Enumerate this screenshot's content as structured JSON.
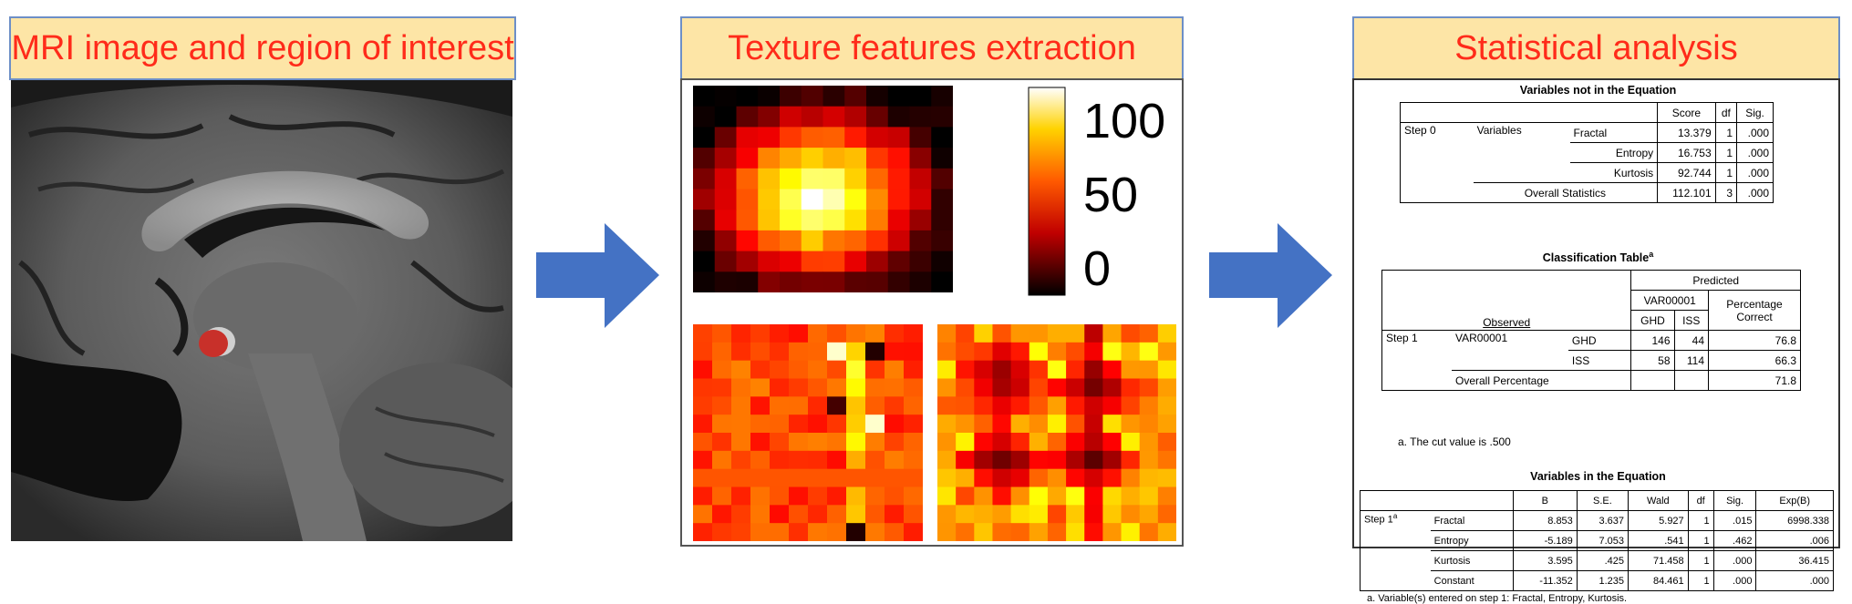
{
  "panels": {
    "mri_title": "MRI image and region of interest",
    "texture_title": "Texture features extraction",
    "stats_title": "Statistical analysis"
  },
  "colorbar": {
    "ticks": [
      "100",
      "50",
      "0"
    ],
    "range": [
      0,
      100
    ]
  },
  "table1": {
    "title": "Variables not in the Equation",
    "headers": [
      "Score",
      "df",
      "Sig."
    ],
    "step": "Step 0",
    "group": "Variables",
    "rows": [
      {
        "name": "Fractal",
        "score": "13.379",
        "df": "1",
        "sig": ".000"
      },
      {
        "name": "Entropy",
        "score": "16.753",
        "df": "1",
        "sig": ".000"
      },
      {
        "name": "Kurtosis",
        "score": "92.744",
        "df": "1",
        "sig": ".000"
      }
    ],
    "overall": {
      "name": "Overall Statistics",
      "score": "112.101",
      "df": "3",
      "sig": ".000"
    }
  },
  "table2": {
    "title": "Classification Table",
    "title_sup": "a",
    "predicted": "Predicted",
    "var": "VAR00001",
    "observed": "Observed",
    "pct_header": "Percentage Correct",
    "col_ghd": "GHD",
    "col_iss": "ISS",
    "step": "Step 1",
    "row_var": "VAR00001",
    "rows": [
      {
        "label": "GHD",
        "ghd": "146",
        "iss": "44",
        "pct": "76.8"
      },
      {
        "label": "ISS",
        "ghd": "58",
        "iss": "114",
        "pct": "66.3"
      }
    ],
    "overall_label": "Overall Percentage",
    "overall_pct": "71.8",
    "note": "a. The cut value is .500"
  },
  "table3": {
    "title": "Variables in the Equation",
    "headers": [
      "B",
      "S.E.",
      "Wald",
      "df",
      "Sig.",
      "Exp(B)"
    ],
    "step": "Step 1",
    "step_sup": "a",
    "rows": [
      {
        "name": "Fractal",
        "b": "8.853",
        "se": "3.637",
        "wald": "5.927",
        "df": "1",
        "sig": ".015",
        "exp": "6998.338"
      },
      {
        "name": "Entropy",
        "b": "-5.189",
        "se": "7.053",
        "wald": ".541",
        "df": "1",
        "sig": ".462",
        "exp": ".006"
      },
      {
        "name": "Kurtosis",
        "b": "3.595",
        "se": ".425",
        "wald": "71.458",
        "df": "1",
        "sig": ".000",
        "exp": "36.415"
      },
      {
        "name": "Constant",
        "b": "-11.352",
        "se": "1.235",
        "wald": "84.461",
        "df": "1",
        "sig": ".000",
        "exp": ".000"
      }
    ],
    "note": "a. Variable(s) entered on step 1: Fractal, Entropy, Kurtosis."
  },
  "colors": {
    "title_bg": "#fde5a6",
    "title_text": "#ff2b1a",
    "title_border": "#6d8fc7",
    "arrow": "#4472c4",
    "roi": "#c8302a"
  }
}
